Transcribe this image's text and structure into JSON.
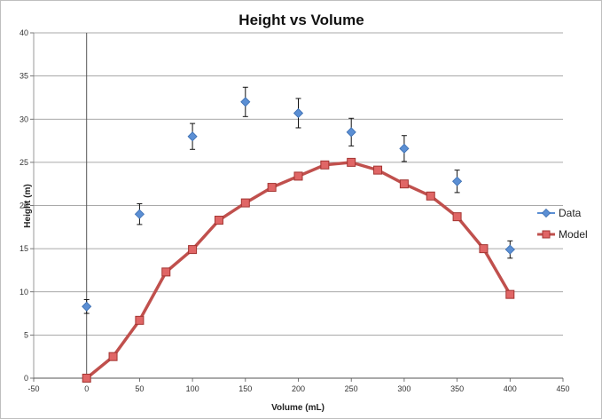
{
  "chart_data": {
    "type": "scatter",
    "title": "Height vs Volume",
    "xlabel": "Volume (mL)",
    "ylabel": "Height (m)",
    "xlim": [
      -50,
      450
    ],
    "ylim": [
      0,
      40
    ],
    "xticks": [
      -50,
      0,
      50,
      100,
      150,
      200,
      250,
      300,
      350,
      400,
      450
    ],
    "yticks": [
      0,
      5,
      10,
      15,
      20,
      25,
      30,
      35,
      40
    ],
    "grid": "horizontal",
    "legend_position": "right",
    "series": [
      {
        "name": "Data",
        "kind": "scatter",
        "marker": "diamond",
        "color": "#5b8fd4",
        "x": [
          0,
          50,
          100,
          150,
          200,
          250,
          300,
          350,
          400
        ],
        "y": [
          8.3,
          19.0,
          28.0,
          32.0,
          30.7,
          28.5,
          26.6,
          22.8,
          14.9
        ],
        "error": [
          0.8,
          1.2,
          1.5,
          1.7,
          1.7,
          1.6,
          1.5,
          1.3,
          1.0
        ]
      },
      {
        "name": "Model",
        "kind": "line",
        "marker": "square",
        "color": "#c0504d",
        "x": [
          0,
          25,
          50,
          75,
          100,
          125,
          150,
          175,
          200,
          225,
          250,
          275,
          300,
          325,
          350,
          375,
          400
        ],
        "y": [
          0,
          2.5,
          6.7,
          12.3,
          14.9,
          18.3,
          20.3,
          22.1,
          23.4,
          24.7,
          25.0,
          24.1,
          22.5,
          21.1,
          18.7,
          15.0,
          9.7
        ]
      }
    ]
  }
}
